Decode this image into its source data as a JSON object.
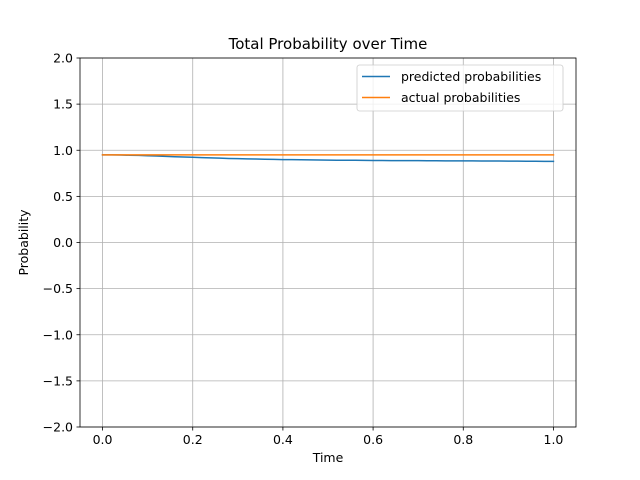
{
  "chart_data": {
    "type": "line",
    "title": "Total Probability over Time",
    "xlabel": "Time",
    "ylabel": "Probability",
    "xlim": [
      -0.05,
      1.05
    ],
    "ylim": [
      -2.0,
      2.0
    ],
    "xticks": [
      0.0,
      0.2,
      0.4,
      0.6,
      0.8,
      1.0
    ],
    "xtick_labels": [
      "0.0",
      "0.2",
      "0.4",
      "0.6",
      "0.8",
      "1.0"
    ],
    "yticks": [
      -2.0,
      -1.5,
      -1.0,
      -0.5,
      0.0,
      0.5,
      1.0,
      1.5,
      2.0
    ],
    "ytick_labels": [
      "−2.0",
      "−1.5",
      "−1.0",
      "−0.5",
      "0.0",
      "0.5",
      "1.0",
      "1.5",
      "2.0"
    ],
    "grid": true,
    "legend_position": "upper right",
    "series": [
      {
        "name": "predicted probabilities",
        "color": "#1f77b4",
        "x": [
          0.0,
          0.02,
          0.04,
          0.06,
          0.08,
          0.1,
          0.12,
          0.14,
          0.16,
          0.18,
          0.2,
          0.22,
          0.24,
          0.26,
          0.28,
          0.3,
          0.32,
          0.34,
          0.36,
          0.38,
          0.4,
          0.42,
          0.44,
          0.46,
          0.48,
          0.5,
          0.52,
          0.54,
          0.56,
          0.58,
          0.6,
          0.62,
          0.64,
          0.66,
          0.68,
          0.7,
          0.72,
          0.74,
          0.76,
          0.78,
          0.8,
          0.82,
          0.84,
          0.86,
          0.88,
          0.9,
          0.92,
          0.94,
          0.96,
          0.98,
          1.0
        ],
        "y": [
          0.95,
          0.95,
          0.948,
          0.946,
          0.944,
          0.941,
          0.938,
          0.934,
          0.93,
          0.927,
          0.924,
          0.92,
          0.917,
          0.914,
          0.911,
          0.909,
          0.907,
          0.905,
          0.903,
          0.901,
          0.899,
          0.898,
          0.897,
          0.896,
          0.895,
          0.893,
          0.892,
          0.892,
          0.891,
          0.89,
          0.889,
          0.889,
          0.888,
          0.888,
          0.887,
          0.887,
          0.886,
          0.886,
          0.885,
          0.885,
          0.885,
          0.885,
          0.884,
          0.884,
          0.883,
          0.882,
          0.882,
          0.881,
          0.881,
          0.88,
          0.879
        ]
      },
      {
        "name": "actual probabilities",
        "color": "#ff7f0e",
        "x": [
          0.0,
          1.0
        ],
        "y": [
          0.95,
          0.95
        ]
      }
    ]
  }
}
